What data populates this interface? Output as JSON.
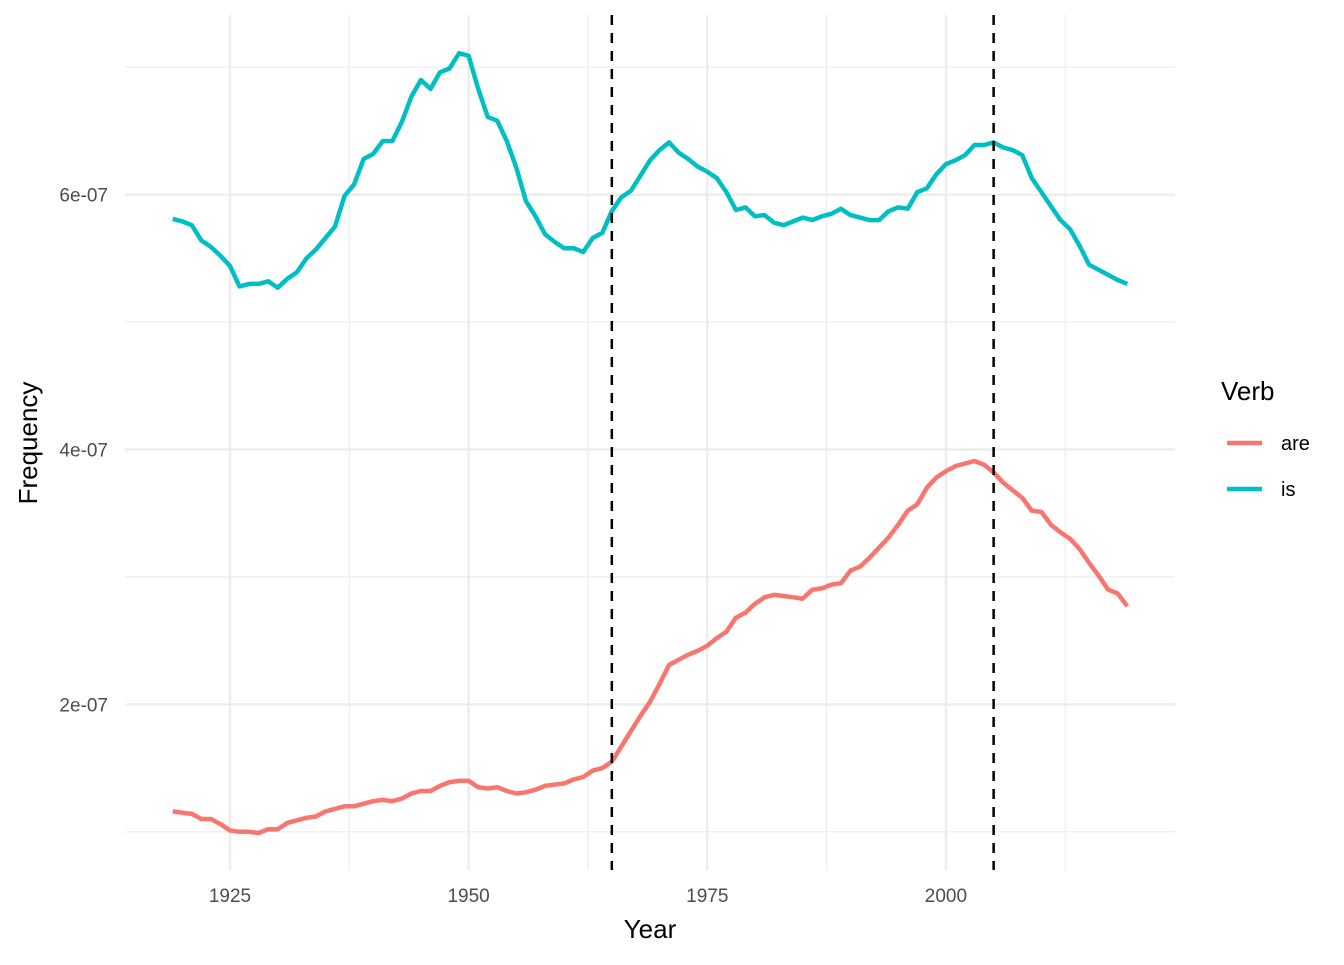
{
  "chart_data": {
    "type": "line",
    "title": "",
    "xlabel": "Year",
    "ylabel": "Frequency",
    "xlim": [
      1914,
      2024
    ],
    "ylim": [
      7e-08,
      7.41e-07
    ],
    "grid": true,
    "x_ticks": [
      1925,
      1950,
      1975,
      2000
    ],
    "x_tick_labels": [
      "1925",
      "1950",
      "1975",
      "2000"
    ],
    "x_minor_ticks": [
      1937.5,
      1962.5,
      1987.5,
      2012.5
    ],
    "y_ticks": [
      2e-07,
      4e-07,
      6e-07
    ],
    "y_tick_labels": [
      "2e-07",
      "4e-07",
      "6e-07"
    ],
    "y_minor_ticks": [
      1e-07,
      3e-07,
      5e-07,
      7e-07
    ],
    "vlines": [
      {
        "x": 1965,
        "style": "dashed",
        "color": "#000000"
      },
      {
        "x": 2005,
        "style": "dashed",
        "color": "#000000"
      }
    ],
    "legend": {
      "title": "Verb",
      "position": "right"
    },
    "x": [
      1919,
      1920,
      1921,
      1922,
      1923,
      1924,
      1925,
      1926,
      1927,
      1928,
      1929,
      1930,
      1931,
      1932,
      1933,
      1934,
      1935,
      1936,
      1937,
      1938,
      1939,
      1940,
      1941,
      1942,
      1943,
      1944,
      1945,
      1946,
      1947,
      1948,
      1949,
      1950,
      1951,
      1952,
      1953,
      1954,
      1955,
      1956,
      1957,
      1958,
      1959,
      1960,
      1961,
      1962,
      1963,
      1964,
      1965,
      1966,
      1967,
      1968,
      1969,
      1970,
      1971,
      1972,
      1973,
      1974,
      1975,
      1976,
      1977,
      1978,
      1979,
      1980,
      1981,
      1982,
      1983,
      1984,
      1985,
      1986,
      1987,
      1988,
      1989,
      1990,
      1991,
      1992,
      1993,
      1994,
      1995,
      1996,
      1997,
      1998,
      1999,
      2000,
      2001,
      2002,
      2003,
      2004,
      2005,
      2006,
      2007,
      2008,
      2009,
      2010,
      2011,
      2012,
      2013,
      2014,
      2015,
      2016,
      2017,
      2018,
      2019
    ],
    "series": [
      {
        "name": "are",
        "color": "#F8766D",
        "values": [
          1.16e-07,
          1.15e-07,
          1.14e-07,
          1.1e-07,
          1.1e-07,
          1.06e-07,
          1.01e-07,
          1e-07,
          1e-07,
          9.9e-08,
          1.02e-07,
          1.02e-07,
          1.07e-07,
          1.09e-07,
          1.11e-07,
          1.12e-07,
          1.16e-07,
          1.18e-07,
          1.2e-07,
          1.2e-07,
          1.22e-07,
          1.24e-07,
          1.25e-07,
          1.24e-07,
          1.26e-07,
          1.3e-07,
          1.32e-07,
          1.32e-07,
          1.36e-07,
          1.39e-07,
          1.4e-07,
          1.4e-07,
          1.35e-07,
          1.34e-07,
          1.35e-07,
          1.32e-07,
          1.3e-07,
          1.31e-07,
          1.33e-07,
          1.36e-07,
          1.37e-07,
          1.38e-07,
          1.41e-07,
          1.43e-07,
          1.48e-07,
          1.5e-07,
          1.55e-07,
          1.67e-07,
          1.79e-07,
          1.91e-07,
          2.02e-07,
          2.16e-07,
          2.31e-07,
          2.35e-07,
          2.39e-07,
          2.42e-07,
          2.46e-07,
          2.52e-07,
          2.57e-07,
          2.68e-07,
          2.72e-07,
          2.79e-07,
          2.84e-07,
          2.86e-07,
          2.85e-07,
          2.84e-07,
          2.83e-07,
          2.9e-07,
          2.91e-07,
          2.94e-07,
          2.95e-07,
          3.05e-07,
          3.08e-07,
          3.15e-07,
          3.23e-07,
          3.31e-07,
          3.41e-07,
          3.52e-07,
          3.57e-07,
          3.7e-07,
          3.78e-07,
          3.83e-07,
          3.87e-07,
          3.89e-07,
          3.91e-07,
          3.88e-07,
          3.82e-07,
          3.74e-07,
          3.68e-07,
          3.62e-07,
          3.52e-07,
          3.51e-07,
          3.41e-07,
          3.35e-07,
          3.3e-07,
          3.22e-07,
          3.11e-07,
          3.01e-07,
          2.9e-07,
          2.87e-07,
          2.77e-07
        ]
      },
      {
        "name": "is",
        "color": "#00BFC4",
        "values": [
          5.81e-07,
          5.79e-07,
          5.76e-07,
          5.64e-07,
          5.59e-07,
          5.52e-07,
          5.44e-07,
          5.28e-07,
          5.3e-07,
          5.3e-07,
          5.32e-07,
          5.27e-07,
          5.34e-07,
          5.39e-07,
          5.5e-07,
          5.57e-07,
          5.66e-07,
          5.75e-07,
          5.99e-07,
          6.08e-07,
          6.28e-07,
          6.32e-07,
          6.42e-07,
          6.42e-07,
          6.57e-07,
          6.77e-07,
          6.9e-07,
          6.83e-07,
          6.96e-07,
          6.99e-07,
          7.11e-07,
          7.09e-07,
          6.83e-07,
          6.61e-07,
          6.58e-07,
          6.42e-07,
          6.21e-07,
          5.95e-07,
          5.83e-07,
          5.69e-07,
          5.63e-07,
          5.58e-07,
          5.58e-07,
          5.55e-07,
          5.66e-07,
          5.7e-07,
          5.87e-07,
          5.98e-07,
          6.03e-07,
          6.15e-07,
          6.27e-07,
          6.35e-07,
          6.41e-07,
          6.33e-07,
          6.28e-07,
          6.22e-07,
          6.18e-07,
          6.13e-07,
          6.02e-07,
          5.88e-07,
          5.9e-07,
          5.83e-07,
          5.84e-07,
          5.78e-07,
          5.76e-07,
          5.79e-07,
          5.82e-07,
          5.8e-07,
          5.83e-07,
          5.85e-07,
          5.89e-07,
          5.84e-07,
          5.82e-07,
          5.8e-07,
          5.8e-07,
          5.87e-07,
          5.9e-07,
          5.89e-07,
          6.02e-07,
          6.05e-07,
          6.16e-07,
          6.24e-07,
          6.27e-07,
          6.31e-07,
          6.39e-07,
          6.39e-07,
          6.41e-07,
          6.37e-07,
          6.35e-07,
          6.31e-07,
          6.13e-07,
          6.02e-07,
          5.91e-07,
          5.8e-07,
          5.73e-07,
          5.6e-07,
          5.45e-07,
          5.41e-07,
          5.37e-07,
          5.33e-07,
          5.3e-07
        ]
      }
    ]
  }
}
